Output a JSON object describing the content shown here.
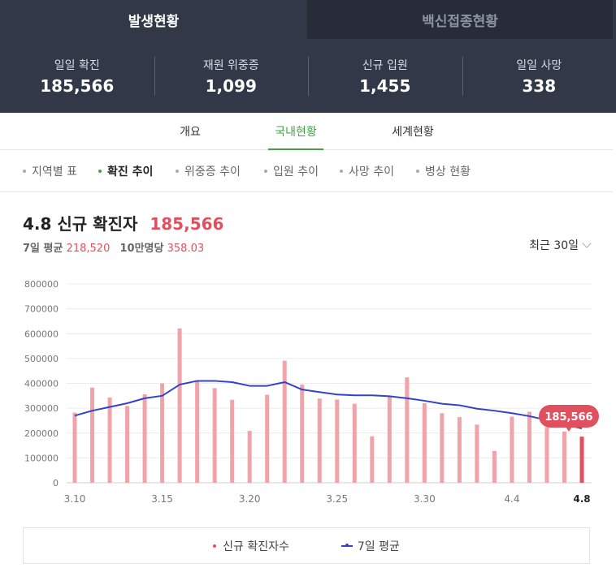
{
  "tabs": {
    "active": "발생현황",
    "inactive": "백신접종현황"
  },
  "stats": [
    {
      "label": "일일 확진",
      "value": "185,566"
    },
    {
      "label": "재원 위중증",
      "value": "1,099"
    },
    {
      "label": "신규 입원",
      "value": "1,455"
    },
    {
      "label": "일일 사망",
      "value": "338"
    }
  ],
  "subtabs": [
    "개요",
    "국내현황",
    "세계현황"
  ],
  "filters": [
    "지역별 표",
    "확진 추이",
    "위중증 추이",
    "입원 추이",
    "사망 추이",
    "병상 현황"
  ],
  "headline": {
    "date": "4.8",
    "label": "신규 확진자",
    "value": "185,566"
  },
  "subline": {
    "avg_label": "7일 평균",
    "avg_value": "218,520",
    "per_label": "10만명당",
    "per_value": "358.03"
  },
  "range": {
    "label": "최근 30일"
  },
  "legend": {
    "bars": "신규 확진자수",
    "line": "7일 평균"
  },
  "colors": {
    "bar": "#f0a3a8",
    "bar_highlight": "#e0505e",
    "line": "#3343c9",
    "active_green": "#43a047",
    "header_bg": "#323848"
  },
  "chart_data": {
    "type": "bar",
    "x": [
      "3.10",
      "3.11",
      "3.12",
      "3.13",
      "3.14",
      "3.15",
      "3.16",
      "3.17",
      "3.18",
      "3.19",
      "3.20",
      "3.21",
      "3.22",
      "3.23",
      "3.24",
      "3.25",
      "3.26",
      "3.27",
      "3.28",
      "3.29",
      "3.30",
      "3.31",
      "4.1",
      "4.2",
      "4.3",
      "4.4",
      "4.5",
      "4.6",
      "4.7",
      "4.8"
    ],
    "x_tick_labels": [
      "3.10",
      "3.15",
      "3.20",
      "3.25",
      "3.30",
      "4.4",
      "4.8"
    ],
    "series": [
      {
        "name": "신규 확진자수",
        "type": "bar",
        "values": [
          282000,
          383000,
          343000,
          309000,
          356000,
          400000,
          621000,
          407000,
          381000,
          334000,
          209000,
          354000,
          491000,
          395000,
          339000,
          335000,
          318000,
          187000,
          347000,
          424000,
          320000,
          280000,
          264000,
          234000,
          128000,
          266000,
          286000,
          224000,
          206000,
          185566
        ]
      },
      {
        "name": "7일 평균",
        "type": "line",
        "values": [
          270000,
          290000,
          305000,
          320000,
          340000,
          350000,
          395000,
          410000,
          410000,
          405000,
          390000,
          390000,
          405000,
          375000,
          365000,
          355000,
          352000,
          352000,
          348000,
          340000,
          330000,
          318000,
          312000,
          298000,
          290000,
          280000,
          268000,
          252000,
          235000,
          218520
        ]
      }
    ],
    "ylim": [
      0,
      800000
    ],
    "y_ticks": [
      0,
      100000,
      200000,
      300000,
      400000,
      500000,
      600000,
      700000,
      800000
    ],
    "highlight": {
      "x": "4.8",
      "value": "185,566"
    },
    "grid": true
  }
}
